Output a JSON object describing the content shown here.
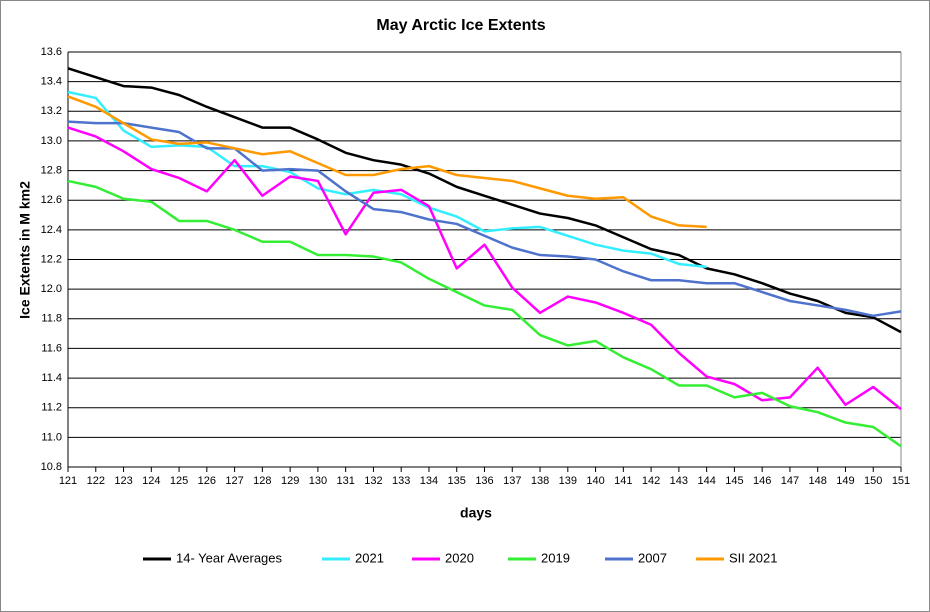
{
  "chart_data": {
    "type": "line",
    "title": "May Arctic Ice Extents",
    "x_label": "days",
    "y_label": "Ice Extents in M km2",
    "x": [
      121,
      122,
      123,
      124,
      125,
      126,
      127,
      128,
      129,
      130,
      131,
      132,
      133,
      134,
      135,
      136,
      137,
      138,
      139,
      140,
      141,
      142,
      143,
      144,
      145,
      146,
      147,
      148,
      149,
      150,
      151
    ],
    "xlim": [
      121,
      151
    ],
    "xticks": [
      121,
      122,
      123,
      124,
      125,
      126,
      127,
      128,
      129,
      130,
      131,
      132,
      133,
      134,
      135,
      136,
      137,
      138,
      139,
      140,
      141,
      142,
      143,
      144,
      145,
      146,
      147,
      148,
      149,
      150,
      151
    ],
    "ylim": [
      10.8,
      13.6
    ],
    "yticks": [
      10.8,
      {
        "value": 11,
        "label": "11.0"
      },
      11.2,
      11.4,
      11.6,
      11.8,
      {
        "value": 12,
        "label": "12.0"
      },
      12.2,
      12.4,
      12.6,
      12.8,
      {
        "value": 13,
        "label": "13.0"
      },
      13.2,
      13.4,
      13.6
    ],
    "grid": true,
    "legend": "bottom",
    "series": [
      {
        "name": "14- Year Averages",
        "color": "#000000",
        "values": [
          13.49,
          13.43,
          13.37,
          13.36,
          13.31,
          13.23,
          13.16,
          13.09,
          13.09,
          13.01,
          12.92,
          12.87,
          12.84,
          12.78,
          12.69,
          12.63,
          12.57,
          12.51,
          12.48,
          12.43,
          12.35,
          12.27,
          12.23,
          12.14,
          12.1,
          12.04,
          11.97,
          11.92,
          11.84,
          11.81,
          11.71
        ]
      },
      {
        "name": "2021",
        "color": "#33EEFF",
        "values": [
          13.33,
          13.29,
          13.07,
          12.96,
          12.97,
          12.96,
          12.83,
          12.83,
          12.79,
          12.68,
          12.64,
          12.67,
          12.64,
          12.55,
          12.49,
          12.39,
          12.41,
          12.42,
          12.36,
          12.3,
          12.26,
          12.24,
          12.17,
          12.15,
          null,
          null,
          null,
          null,
          null,
          null,
          null
        ]
      },
      {
        "name": "2020",
        "color": "#FF00FF",
        "values": [
          13.09,
          13.03,
          12.93,
          12.81,
          12.75,
          12.66,
          12.87,
          12.63,
          12.76,
          12.73,
          12.37,
          12.65,
          12.67,
          12.56,
          12.14,
          12.3,
          12.01,
          11.84,
          11.95,
          11.91,
          11.84,
          11.76,
          11.57,
          11.41,
          11.36,
          11.25,
          11.27,
          11.47,
          11.22,
          11.34,
          11.19
        ]
      },
      {
        "name": "2019",
        "color": "#33EE33",
        "values": [
          12.73,
          12.69,
          12.61,
          12.59,
          12.46,
          12.46,
          12.4,
          12.32,
          12.32,
          12.23,
          12.23,
          12.22,
          12.18,
          12.07,
          11.98,
          11.89,
          11.86,
          11.69,
          11.62,
          11.65,
          11.54,
          11.46,
          11.35,
          11.35,
          11.27,
          11.3,
          11.21,
          11.17,
          11.1,
          11.07,
          10.94
        ]
      },
      {
        "name": "2007",
        "color": "#4F73CC",
        "values": [
          13.13,
          13.12,
          13.12,
          13.09,
          13.06,
          12.95,
          12.95,
          12.8,
          12.81,
          12.8,
          12.66,
          12.54,
          12.52,
          12.47,
          12.44,
          12.36,
          12.28,
          12.23,
          12.22,
          12.2,
          12.12,
          12.06,
          12.06,
          12.04,
          12.04,
          11.98,
          11.92,
          11.89,
          11.86,
          11.82,
          11.85
        ]
      },
      {
        "name": "SII 2021",
        "color": "#FF9900",
        "values": [
          13.3,
          13.23,
          13.12,
          13.01,
          12.98,
          12.99,
          12.95,
          12.91,
          12.93,
          12.85,
          12.77,
          12.77,
          12.81,
          12.83,
          12.77,
          12.75,
          12.73,
          12.68,
          12.63,
          12.61,
          12.62,
          12.49,
          12.43,
          12.42,
          null,
          null,
          null,
          null,
          null,
          null,
          null
        ]
      }
    ]
  }
}
